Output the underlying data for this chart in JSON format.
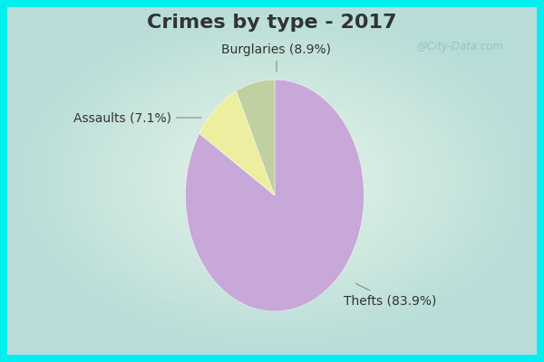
{
  "title": "Crimes by type - 2017",
  "slices": [
    {
      "label": "Thefts",
      "pct": 83.9,
      "color": "#C8A8D8"
    },
    {
      "label": "Burglaries",
      "pct": 8.9,
      "color": "#EEEEA0"
    },
    {
      "label": "Assaults",
      "pct": 7.1,
      "color": "#C0D0A0"
    }
  ],
  "border_color": "#00EEEE",
  "border_width": 8,
  "bg_color_center": "#E8F5E8",
  "bg_color_edge": "#B8DDD8",
  "title_fontsize": 16,
  "title_color": "#333333",
  "label_fontsize": 10,
  "label_color": "#333333",
  "watermark": "@City-Data.com",
  "startangle": 90
}
